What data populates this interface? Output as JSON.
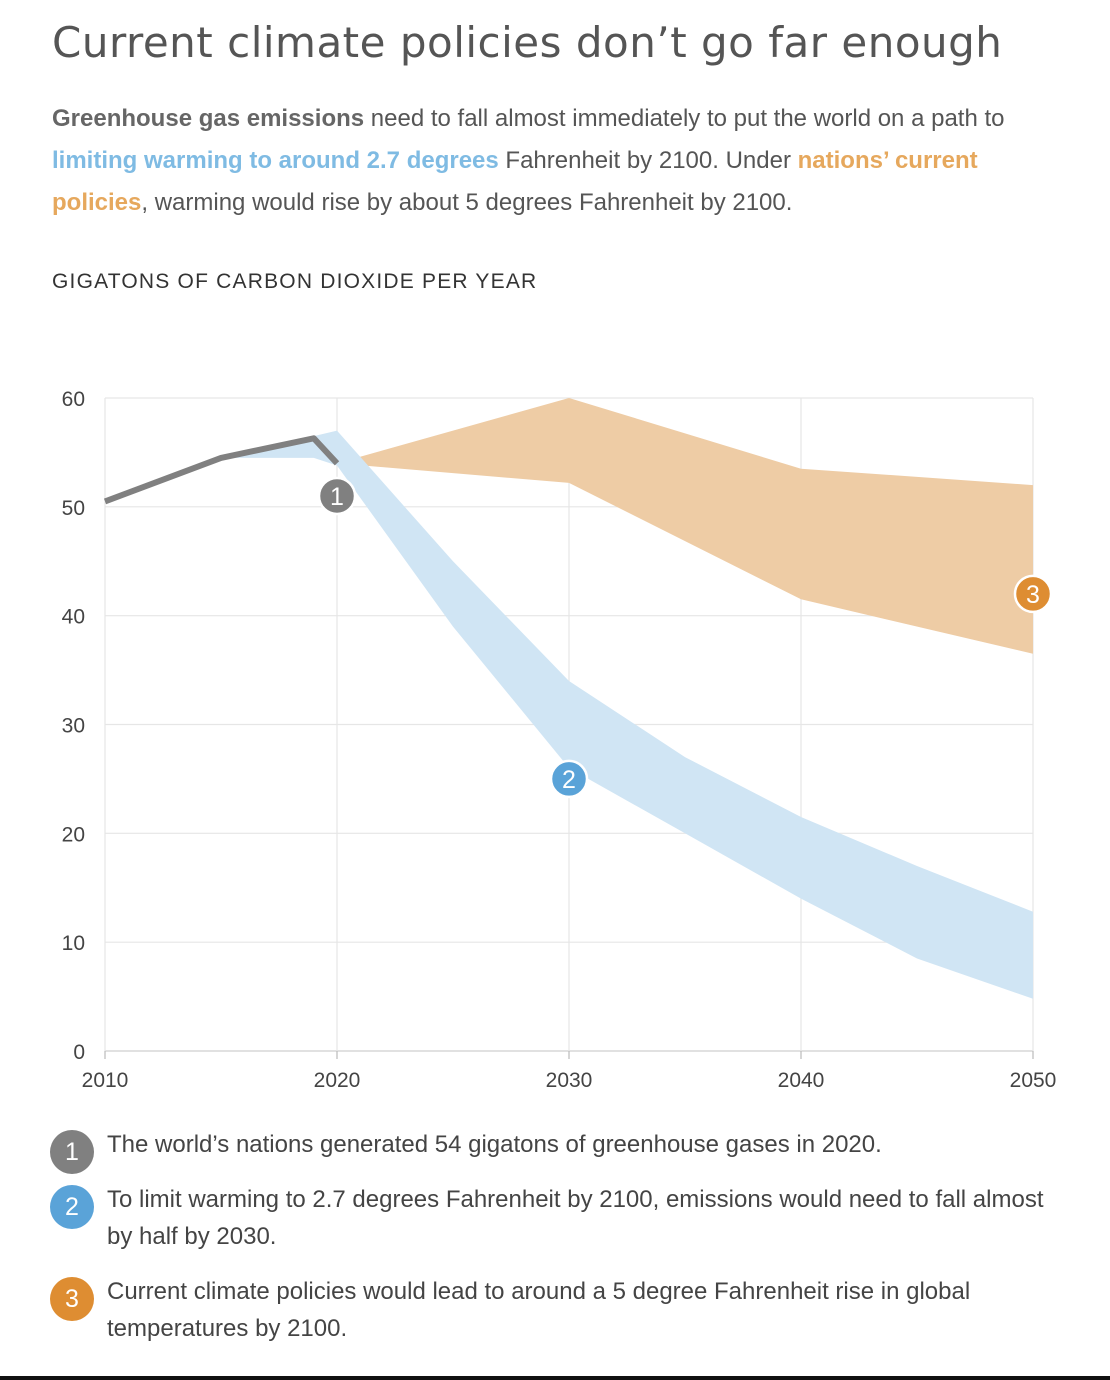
{
  "title": "Current climate policies don’t go far enough",
  "intro": {
    "part1": "Greenhouse gas emissions",
    "part2": " need to fall almost immediately to put the world on a path to ",
    "part3": "limiting warming to around 2.7 degrees",
    "part4": " Fahrenheit by 2100. Under ",
    "part5": "nations’ current policies",
    "part6": ", warming would rise by about 5 degrees Fahrenheit by 2100."
  },
  "colors": {
    "historical": "#808080",
    "limit_band": "#d0e5f4",
    "limit_badge": "#5aa3d8",
    "policy_band": "#eecca5",
    "policy_badge": "#de8d32",
    "grid": "#e6e6e6"
  },
  "chart_data": {
    "type": "area",
    "ylabel": "GIGATONS OF CARBON DIOXIDE PER YEAR",
    "xlim": [
      2010,
      2050
    ],
    "ylim": [
      0,
      60
    ],
    "x_ticks": [
      2010,
      2020,
      2030,
      2040,
      2050
    ],
    "y_ticks": [
      0,
      10,
      20,
      30,
      40,
      50,
      60
    ],
    "grid": true,
    "legend": "none",
    "series": [
      {
        "type": "line",
        "x": [
          2010,
          2015,
          2019,
          2020
        ],
        "y": [
          50.5,
          54.5,
          56.3,
          54
        ]
      },
      {
        "type": "band",
        "x": [
          2015,
          2019,
          2020,
          2025,
          2030,
          2035,
          2040,
          2045,
          2050
        ],
        "low": [
          54.5,
          54.5,
          53.8,
          39,
          26,
          20,
          14,
          8.5,
          4.8
        ],
        "high": [
          54.5,
          56.5,
          57,
          45,
          34,
          27,
          21.5,
          17,
          12.8
        ],
        "marker": "2"
      },
      {
        "type": "band",
        "x": [
          2020,
          2030,
          2040,
          2050
        ],
        "low": [
          54,
          52.2,
          41.5,
          36.5
        ],
        "high": [
          54,
          60,
          53.5,
          52
        ],
        "marker": "3"
      }
    ],
    "markers": [
      {
        "label": "1",
        "x": 2020,
        "y": 51
      },
      {
        "label": "2",
        "x": 2030,
        "y": 25
      },
      {
        "label": "3",
        "x": 2050,
        "y": 42
      }
    ]
  },
  "notes": [
    {
      "badge": "1",
      "text": "The world’s nations generated 54 gigatons of greenhouse gases in 2020."
    },
    {
      "badge": "2",
      "text": "To limit warming to 2.7 degrees Fahrenheit by 2100, emissions would need to fall almost by half by 2030."
    },
    {
      "badge": "3",
      "text": "Current climate policies would lead to around a 5 degree Fahrenheit rise in global temperatures by 2100."
    }
  ]
}
